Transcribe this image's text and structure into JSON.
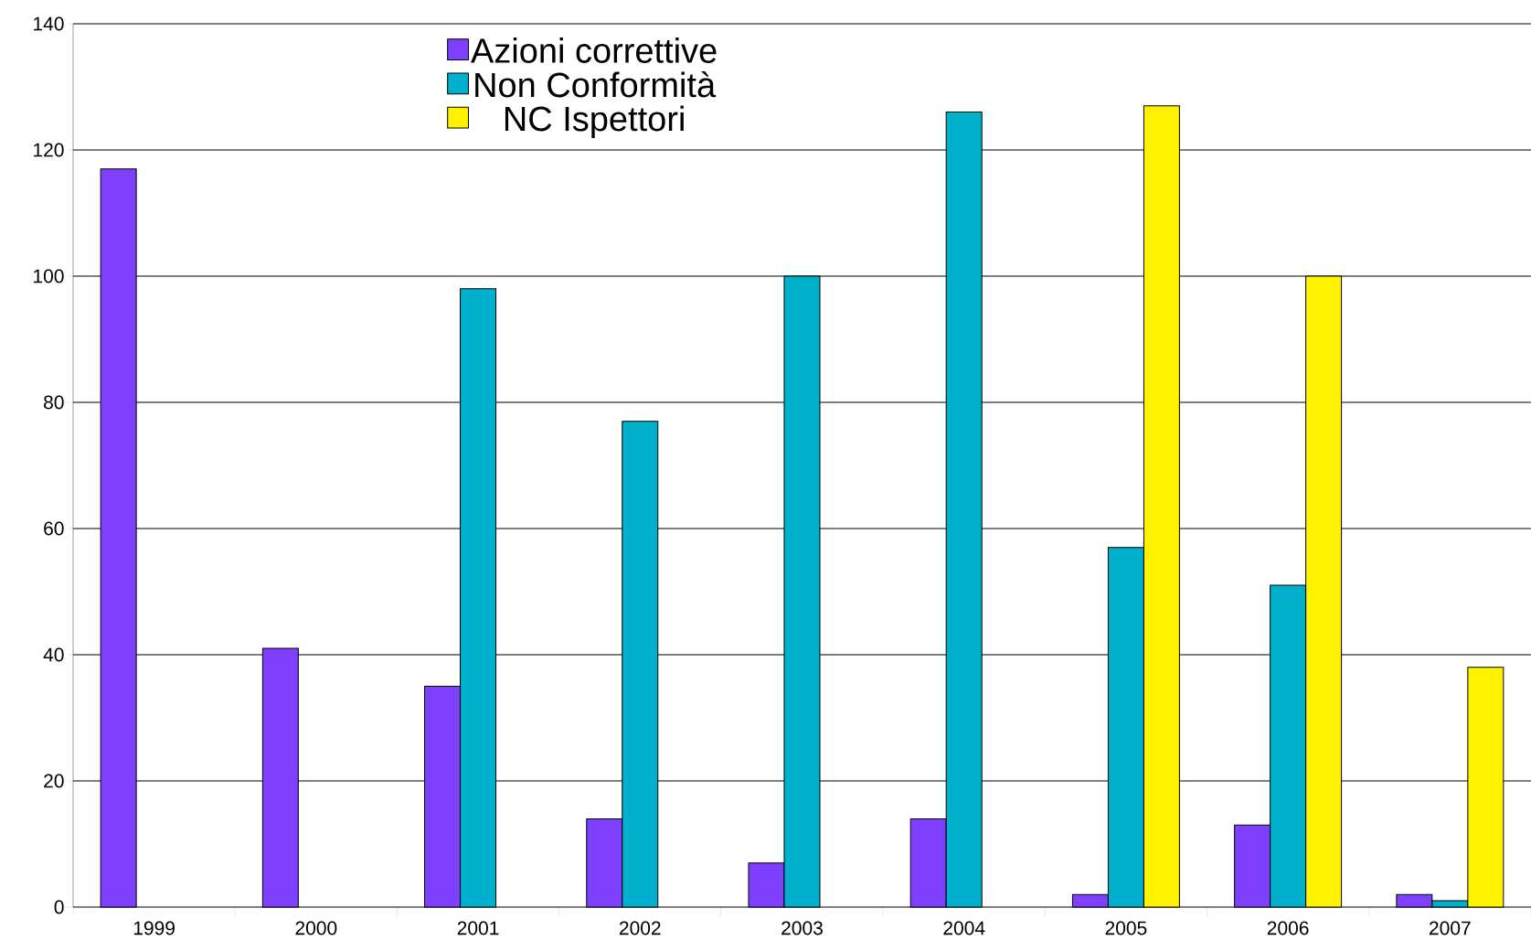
{
  "chart_data": {
    "type": "bar",
    "categories": [
      "1999",
      "2000",
      "2001",
      "2002",
      "2003",
      "2004",
      "2005",
      "2006",
      "2007"
    ],
    "series": [
      {
        "name": "Azioni correttive",
        "color": "#7f3fff",
        "values": [
          117,
          41,
          35,
          14,
          7,
          14,
          2,
          13,
          2
        ]
      },
      {
        "name": "Non Conformità",
        "color": "#00b0cc",
        "values": [
          null,
          null,
          98,
          77,
          100,
          126,
          57,
          51,
          1
        ]
      },
      {
        "name": "NC Ispettori",
        "color": "#fff200",
        "values": [
          null,
          null,
          null,
          null,
          null,
          null,
          127,
          100,
          38
        ]
      }
    ],
    "ylim": [
      0,
      140
    ],
    "yticks": [
      0,
      20,
      40,
      60,
      80,
      100,
      120,
      140
    ],
    "grid": "y",
    "legend": "top"
  }
}
